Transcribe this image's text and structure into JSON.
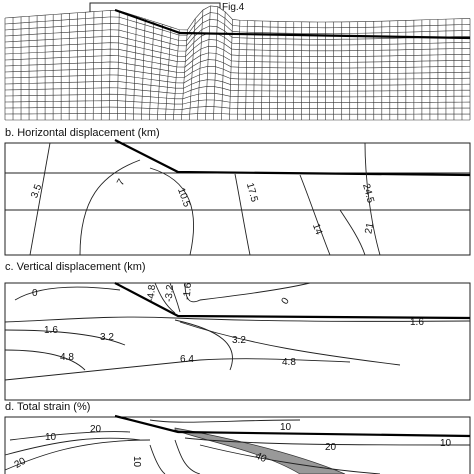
{
  "figure_label": "Fig.4",
  "panels": [
    {
      "title": "b. Horizontal displacement (km)",
      "contour_labels": [
        "3.5",
        "7",
        "10.5",
        "17.5",
        "24.5",
        "14",
        "21"
      ]
    },
    {
      "title": "c. Vertical displacement (km)",
      "contour_labels": [
        "0",
        "-4.8",
        "-3.2",
        "-1.6",
        "0",
        "1.6",
        "1.6",
        "3.2",
        "3.2",
        "4.8",
        "6.4",
        "4.8"
      ]
    },
    {
      "title": "d. Total strain (%)",
      "contour_labels": [
        "10",
        "20",
        "20",
        "10",
        "10",
        "40",
        "20",
        "10"
      ]
    }
  ]
}
